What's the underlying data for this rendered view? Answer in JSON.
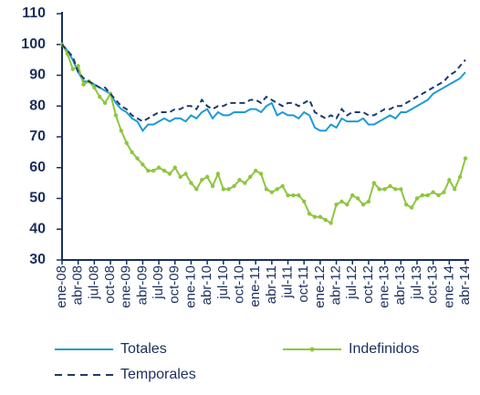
{
  "chart_data": {
    "type": "line",
    "categories": [
      "ene-08",
      null,
      null,
      "abr-08",
      null,
      null,
      "jul-08",
      null,
      null,
      "oct-08",
      null,
      null,
      "ene-09",
      null,
      null,
      "abr-09",
      null,
      null,
      "jul-09",
      null,
      null,
      "oct-09",
      null,
      null,
      "ene-10",
      null,
      null,
      "abr-10",
      null,
      null,
      "jul-10",
      null,
      null,
      "oct-10",
      null,
      null,
      "ene-11",
      null,
      null,
      "abr-11",
      null,
      null,
      "jul-11",
      null,
      null,
      "oct-11",
      null,
      null,
      "ene-12",
      null,
      null,
      "abr-12",
      null,
      null,
      "jul-12",
      null,
      null,
      "oct-12",
      null,
      null,
      "ene-13",
      null,
      null,
      "abr-13",
      null,
      null,
      "jul-13",
      null,
      null,
      "oct-13",
      null,
      null,
      "ene-14",
      null,
      null,
      "abr-14"
    ],
    "series": [
      {
        "name": "Totales",
        "color": "#1e9ad6",
        "style": "solid",
        "values": [
          100,
          98,
          95,
          91,
          88,
          88,
          87,
          86,
          85,
          84,
          81,
          79,
          78,
          76,
          75,
          72,
          74,
          74,
          75,
          76,
          75,
          76,
          76,
          75,
          77,
          76,
          78,
          79,
          76,
          78,
          77,
          77,
          78,
          78,
          78,
          79,
          79,
          78,
          80,
          81,
          77,
          78,
          77,
          77,
          76,
          78,
          77,
          73,
          72,
          72,
          74,
          73,
          76,
          75,
          75,
          75,
          76,
          74,
          74,
          75,
          76,
          77,
          76,
          78,
          78,
          79,
          80,
          81,
          82,
          84,
          85,
          86,
          87,
          88,
          89,
          91
        ]
      },
      {
        "name": "Indefinidos",
        "color": "#8dc63f",
        "style": "markers",
        "values": [
          100,
          97,
          92,
          93,
          87,
          88,
          86,
          83,
          81,
          84,
          77,
          72,
          68,
          65,
          63,
          61,
          59,
          59,
          60,
          59,
          58,
          60,
          57,
          58,
          55,
          53,
          56,
          57,
          54,
          58,
          53,
          53,
          54,
          56,
          55,
          57,
          59,
          58,
          53,
          52,
          53,
          54,
          51,
          51,
          51,
          49,
          45,
          44,
          44,
          43,
          42,
          48,
          49,
          48,
          51,
          50,
          48,
          49,
          55,
          53,
          53,
          54,
          53,
          53,
          48,
          47,
          50,
          51,
          51,
          52,
          51,
          52,
          56,
          53,
          57,
          63
        ]
      },
      {
        "name": "Temporales",
        "color": "#1b3a6b",
        "style": "dashed",
        "values": [
          100,
          98,
          96,
          91,
          89,
          88,
          87,
          86,
          86,
          84,
          82,
          80,
          79,
          77,
          76,
          75,
          76,
          77,
          78,
          78,
          78,
          79,
          79,
          80,
          80,
          79,
          82,
          80,
          79,
          80,
          80,
          81,
          81,
          81,
          81,
          82,
          82,
          81,
          83,
          82,
          81,
          80,
          81,
          81,
          80,
          81,
          82,
          78,
          77,
          76,
          77,
          76,
          79,
          77,
          78,
          78,
          78,
          77,
          77,
          78,
          79,
          79,
          80,
          80,
          81,
          82,
          83,
          84,
          85,
          86,
          87,
          88,
          90,
          91,
          93,
          95
        ]
      }
    ],
    "ylim": [
      30,
      110
    ],
    "yticks": [
      30,
      40,
      50,
      60,
      70,
      80,
      90,
      100,
      110
    ],
    "grid": false
  }
}
